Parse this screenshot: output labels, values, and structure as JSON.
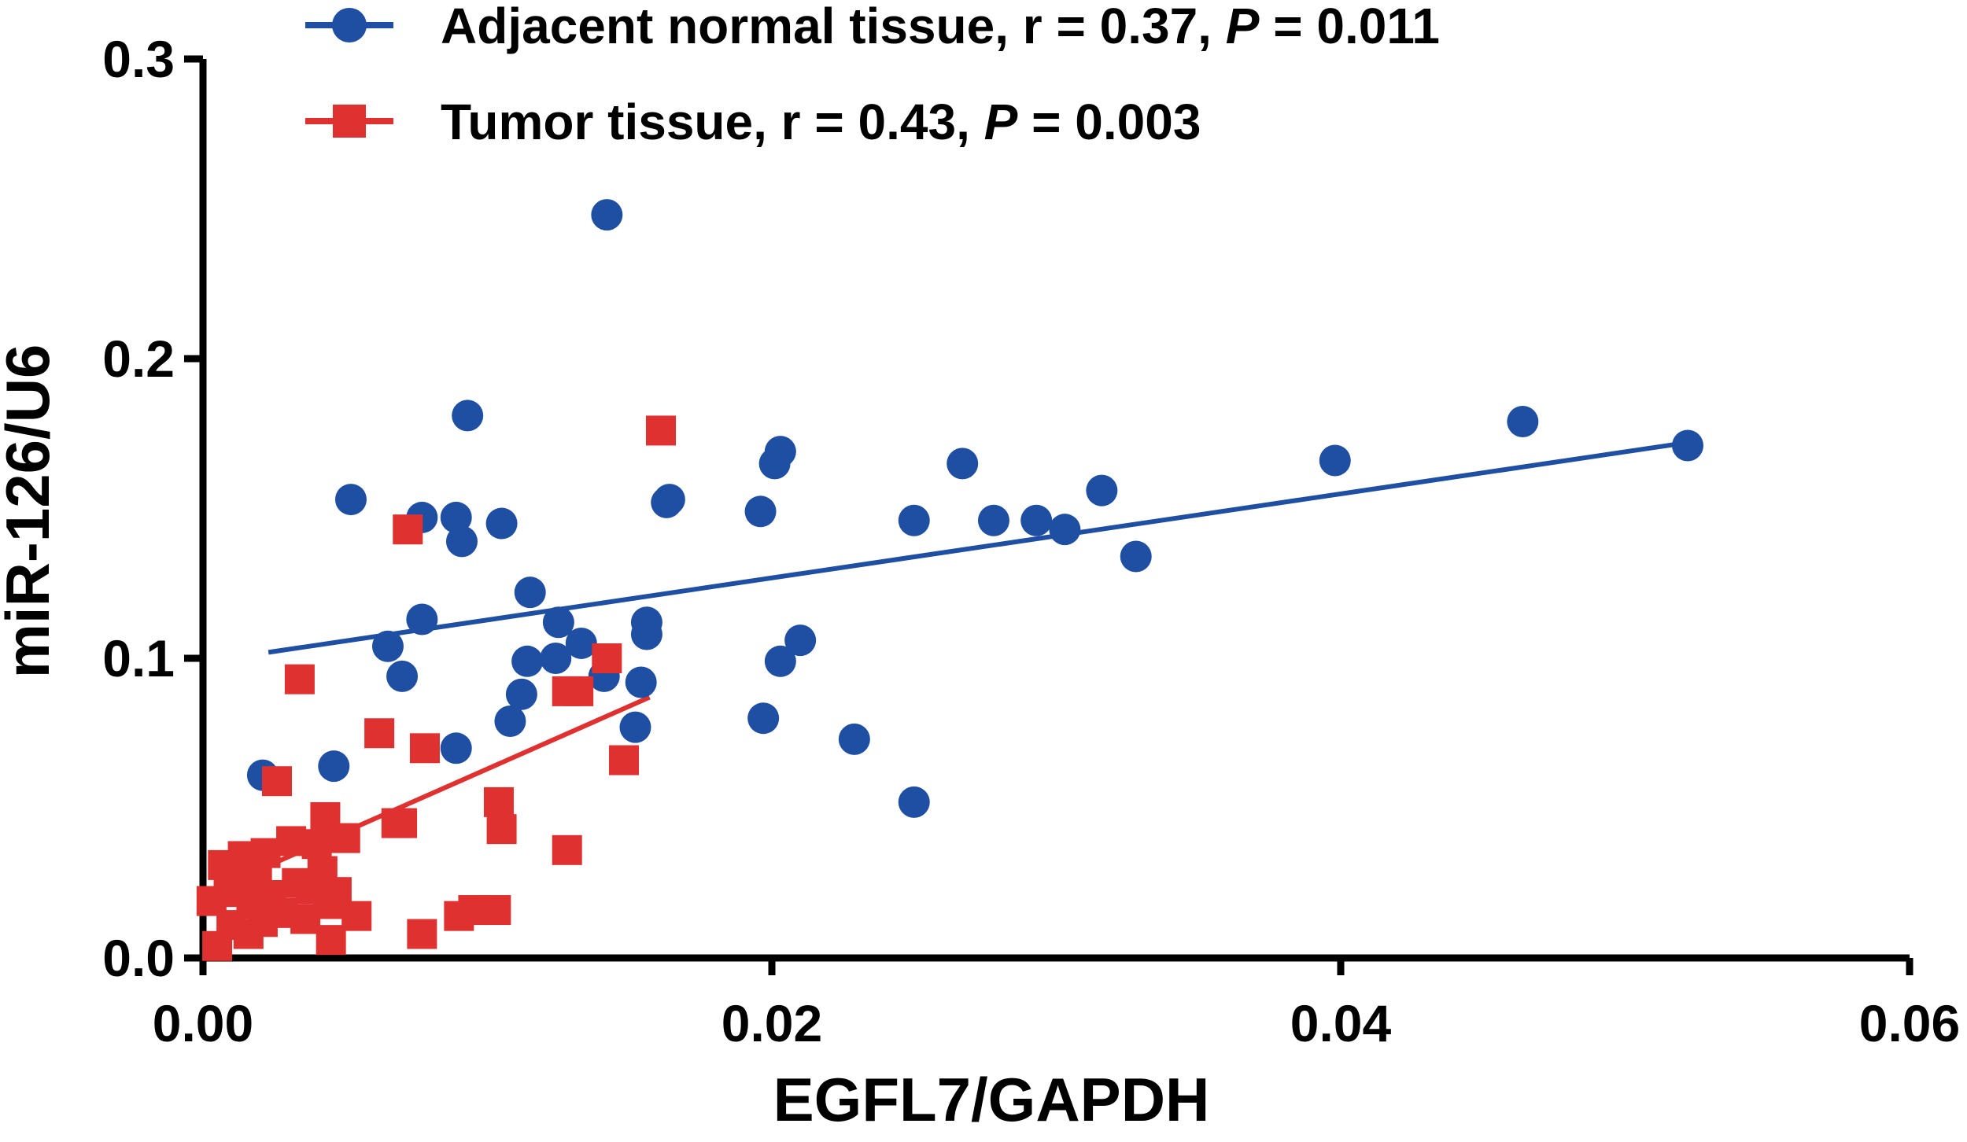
{
  "chart_data": {
    "type": "scatter",
    "xlabel": "EGFL7/GAPDH",
    "ylabel": "miR-126/U6",
    "xlim": [
      0,
      0.06
    ],
    "ylim": [
      0,
      0.3
    ],
    "x_ticks": [
      "0.00",
      "0.02",
      "0.04",
      "0.06"
    ],
    "y_ticks": [
      "0.0",
      "0.1",
      "0.2",
      "0.3"
    ],
    "grid": false,
    "legend_position": "top",
    "series": [
      {
        "key": "normal",
        "name": "Adjacent normal tissue",
        "legend": {
          "prefix": "Adjacent normal tissue, r = 0.37, ",
          "p_symbol": "P",
          "suffix": " = 0.011"
        },
        "color": "#1f4fa3",
        "marker": "circle",
        "fit": {
          "x": [
            0.0023,
            0.0522
          ],
          "y": [
            0.102,
            0.172
          ]
        },
        "points": [
          [
            0.0021,
            0.061
          ],
          [
            0.0046,
            0.064
          ],
          [
            0.0052,
            0.153
          ],
          [
            0.0065,
            0.104
          ],
          [
            0.007,
            0.094
          ],
          [
            0.0077,
            0.113
          ],
          [
            0.0077,
            0.147
          ],
          [
            0.0089,
            0.07
          ],
          [
            0.0089,
            0.147
          ],
          [
            0.0091,
            0.139
          ],
          [
            0.0093,
            0.181
          ],
          [
            0.0105,
            0.145
          ],
          [
            0.0108,
            0.079
          ],
          [
            0.0112,
            0.088
          ],
          [
            0.0114,
            0.099
          ],
          [
            0.0115,
            0.122
          ],
          [
            0.0124,
            0.1
          ],
          [
            0.0125,
            0.112
          ],
          [
            0.0133,
            0.105
          ],
          [
            0.0141,
            0.094
          ],
          [
            0.0142,
            0.248
          ],
          [
            0.0152,
            0.077
          ],
          [
            0.0154,
            0.092
          ],
          [
            0.0156,
            0.112
          ],
          [
            0.0156,
            0.108
          ],
          [
            0.0163,
            0.152
          ],
          [
            0.0164,
            0.153
          ],
          [
            0.0196,
            0.149
          ],
          [
            0.0197,
            0.08
          ],
          [
            0.0201,
            0.165
          ],
          [
            0.0203,
            0.169
          ],
          [
            0.0203,
            0.099
          ],
          [
            0.021,
            0.106
          ],
          [
            0.0229,
            0.073
          ],
          [
            0.025,
            0.146
          ],
          [
            0.025,
            0.052
          ],
          [
            0.0267,
            0.165
          ],
          [
            0.0278,
            0.146
          ],
          [
            0.0293,
            0.146
          ],
          [
            0.0303,
            0.143
          ],
          [
            0.0316,
            0.156
          ],
          [
            0.0328,
            0.134
          ],
          [
            0.0398,
            0.166
          ],
          [
            0.0464,
            0.179
          ],
          [
            0.0522,
            0.171
          ]
        ]
      },
      {
        "key": "tumor",
        "name": "Tumor tissue",
        "legend": {
          "prefix": "Tumor tissue, r = 0.43, ",
          "p_symbol": "P",
          "suffix": " = 0.003"
        },
        "color": "#e03131",
        "marker": "square",
        "fit": {
          "x": [
            0.0002,
            0.0157
          ],
          "y": [
            0.022,
            0.087
          ]
        },
        "points": [
          [
            0.0003,
            0.019
          ],
          [
            0.0005,
            0.004
          ],
          [
            0.0007,
            0.031
          ],
          [
            0.0009,
            0.022
          ],
          [
            0.001,
            0.011
          ],
          [
            0.0012,
            0.027
          ],
          [
            0.0014,
            0.034
          ],
          [
            0.0016,
            0.008
          ],
          [
            0.0017,
            0.018
          ],
          [
            0.0019,
            0.026
          ],
          [
            0.0021,
            0.012
          ],
          [
            0.0022,
            0.035
          ],
          [
            0.0024,
            0.021
          ],
          [
            0.0026,
            0.059
          ],
          [
            0.0028,
            0.015
          ],
          [
            0.0031,
            0.039
          ],
          [
            0.0033,
            0.025
          ],
          [
            0.0034,
            0.093
          ],
          [
            0.0036,
            0.013
          ],
          [
            0.0038,
            0.023
          ],
          [
            0.004,
            0.038
          ],
          [
            0.0042,
            0.029
          ],
          [
            0.0043,
            0.047
          ],
          [
            0.0044,
            0.018
          ],
          [
            0.0045,
            0.006
          ],
          [
            0.0047,
            0.022
          ],
          [
            0.005,
            0.04
          ],
          [
            0.0054,
            0.014
          ],
          [
            0.0062,
            0.075
          ],
          [
            0.0068,
            0.045
          ],
          [
            0.007,
            0.045
          ],
          [
            0.0072,
            0.143
          ],
          [
            0.0077,
            0.008
          ],
          [
            0.0078,
            0.07
          ],
          [
            0.009,
            0.014
          ],
          [
            0.0095,
            0.016
          ],
          [
            0.0103,
            0.016
          ],
          [
            0.0104,
            0.052
          ],
          [
            0.0105,
            0.043
          ],
          [
            0.0128,
            0.036
          ],
          [
            0.0128,
            0.089
          ],
          [
            0.0132,
            0.089
          ],
          [
            0.0142,
            0.1
          ],
          [
            0.0148,
            0.066
          ],
          [
            0.0161,
            0.176
          ]
        ]
      }
    ]
  }
}
